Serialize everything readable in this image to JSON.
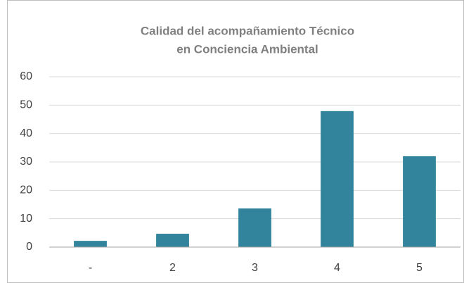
{
  "chart_data": {
    "type": "bar",
    "title": [
      "Calidad del acompañamiento Técnico",
      "en Conciencia Ambiental"
    ],
    "categories": [
      "-",
      "2",
      "3",
      "4",
      "5"
    ],
    "values": [
      2.2,
      4.7,
      13.6,
      47.9,
      32
    ],
    "color": "#31849b",
    "ylim": [
      0,
      60
    ],
    "yticks": [
      0,
      10,
      20,
      30,
      40,
      50,
      60
    ],
    "grid": true
  }
}
